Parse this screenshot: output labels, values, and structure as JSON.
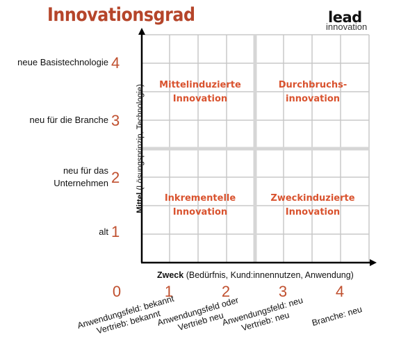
{
  "title": "Innovationsgrad",
  "logo": {
    "line1": "lead",
    "line2": "innovation"
  },
  "y_axis": {
    "title_bold": "Mittel",
    "title_rest": "(Lösungsprinzip, Technologie)",
    "levels": [
      {
        "num": "4",
        "label": "neue Basistechnologie"
      },
      {
        "num": "3",
        "label": "neu für die Branche"
      },
      {
        "num": "2",
        "label": "neu für das Unternehmen"
      },
      {
        "num": "1",
        "label": "alt"
      }
    ]
  },
  "x_axis": {
    "title_bold": "Zweck",
    "title_rest": "(Bedürfnis, Kund:innennutzen, Anwendung)",
    "levels": [
      {
        "num": "0",
        "line1": "",
        "line2": ""
      },
      {
        "num": "1",
        "line1": "Anwendungsfeld: bekannt",
        "line2": "Vertrieb: bekannt"
      },
      {
        "num": "2",
        "line1": "Anwendungsfeld oder",
        "line2": "Vertrieb neu"
      },
      {
        "num": "3",
        "line1": "Anwendungsfeld: neu",
        "line2": "Vertrieb: neu"
      },
      {
        "num": "4",
        "line1": "Branche: neu",
        "line2": ""
      }
    ]
  },
  "quadrants": {
    "top_left": {
      "line1": "Mittelinduzierte",
      "line2": "Innovation"
    },
    "top_right": {
      "line1": "Durchbruchs-",
      "line2": "innovation"
    },
    "bottom_left": {
      "line1": "Inkrementelle",
      "line2": "Innovation"
    },
    "bottom_right": {
      "line1": "Zweckinduzierte",
      "line2": "Innovation"
    }
  },
  "colors": {
    "accent": "#b5452a",
    "quadrant_text": "#d9532f",
    "grid": "#c8c8c8"
  }
}
